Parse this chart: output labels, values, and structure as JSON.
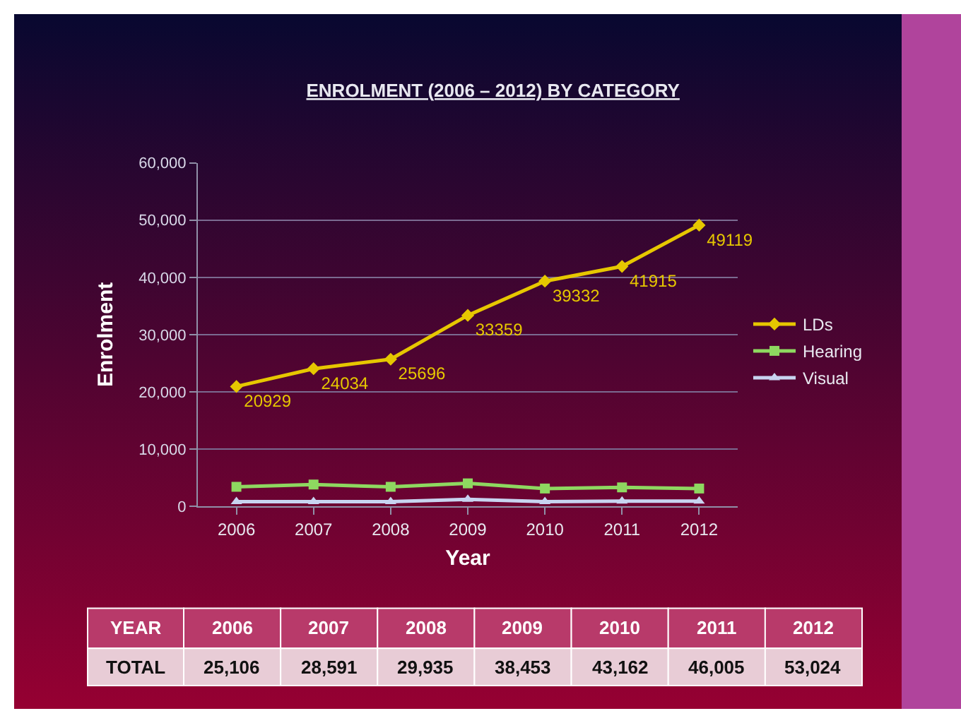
{
  "chart_data": {
    "type": "line",
    "title": "ENROLMENT (2006 – 2012) BY CATEGORY",
    "xlabel": "Year",
    "ylabel": "Enrolment",
    "categories": [
      "2006",
      "2007",
      "2008",
      "2009",
      "2010",
      "2011",
      "2012"
    ],
    "series": [
      {
        "name": "LDs",
        "color": "#e6c700",
        "marker": "diamond",
        "values": [
          20929,
          24034,
          25696,
          33359,
          39332,
          41915,
          49119
        ],
        "value_labels": [
          "20929",
          "24034",
          "25696",
          "33359",
          "39332",
          "41915",
          "49119"
        ]
      },
      {
        "name": "Hearing",
        "color": "#8ed860",
        "marker": "square",
        "values": [
          3400,
          3800,
          3400,
          4000,
          3100,
          3300,
          3100
        ]
      },
      {
        "name": "Visual",
        "color": "#c8d4f0",
        "marker": "triangle",
        "values": [
          800,
          800,
          800,
          1200,
          800,
          900,
          900
        ]
      }
    ],
    "ylim": [
      0,
      60000
    ],
    "yticks": [
      {
        "value": 0,
        "label": "0"
      },
      {
        "value": 10000,
        "label": "10,000"
      },
      {
        "value": 20000,
        "label": "20,000"
      },
      {
        "value": 30000,
        "label": "30,000"
      },
      {
        "value": 40000,
        "label": "40,000"
      },
      {
        "value": 50000,
        "label": "50,000"
      },
      {
        "value": 60000,
        "label": "60,000"
      }
    ],
    "grid": "y",
    "legend": "right",
    "line_style": "solid",
    "annotations": [
      "YEAR",
      "TOTAL"
    ],
    "totals": [
      "25,106",
      "28,591",
      "29,935",
      "38,453",
      "43,162",
      "46,005",
      "53,024"
    ]
  }
}
